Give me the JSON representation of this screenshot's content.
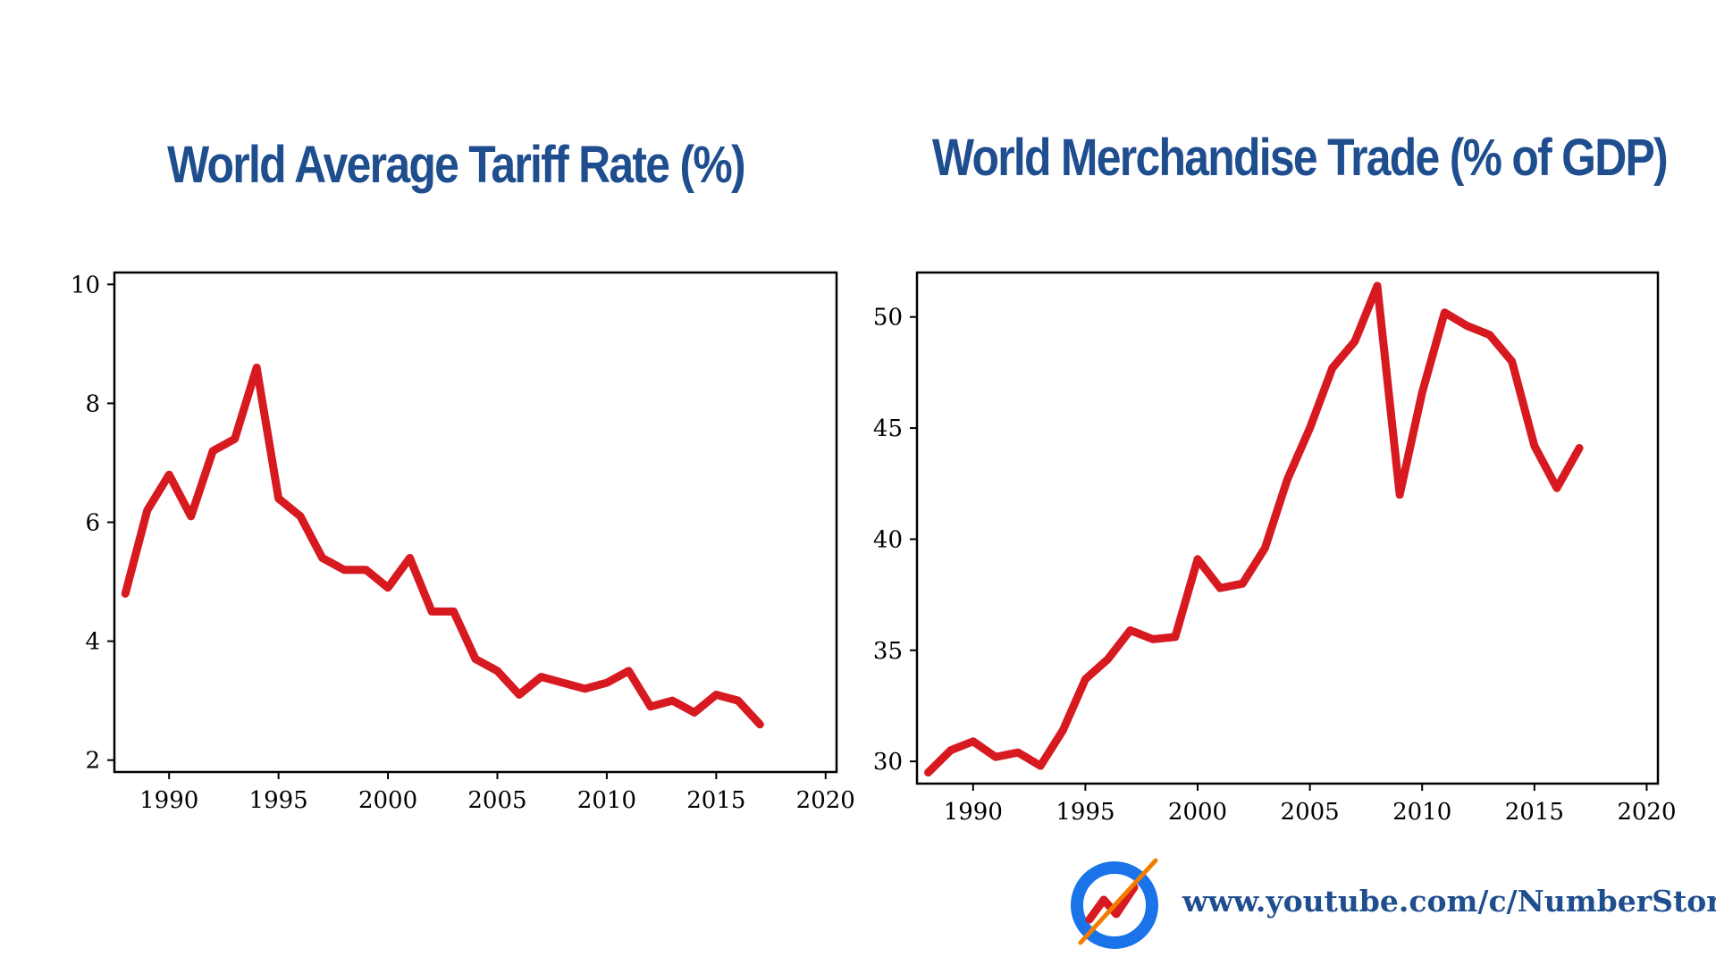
{
  "charts": {
    "left_title": "World Average Tariff Rate (%)",
    "right_title": "World Merchandise Trade (% of GDP)"
  },
  "footer": {
    "url_text": "www.youtube.com/c/NumberStory",
    "logo_icon": "number-story-logo-icon"
  },
  "colors": {
    "title": "#1f4e8f",
    "line": "#d71920",
    "logo_ring": "#1a73e8",
    "logo_accent": "#f07d00"
  },
  "chart_data": [
    {
      "type": "line",
      "title": "World Average Tariff Rate (%)",
      "xlabel": "",
      "ylabel": "",
      "xlim": [
        1987.5,
        2020.5
      ],
      "ylim": [
        1.8,
        10.2
      ],
      "xticks": [
        1990,
        1995,
        2000,
        2005,
        2010,
        2015,
        2020
      ],
      "yticks": [
        2,
        4,
        6,
        8,
        10
      ],
      "grid": false,
      "x": [
        1988,
        1989,
        1990,
        1991,
        1992,
        1993,
        1994,
        1995,
        1996,
        1997,
        1998,
        1999,
        2000,
        2001,
        2002,
        2003,
        2004,
        2005,
        2006,
        2007,
        2008,
        2009,
        2010,
        2011,
        2012,
        2013,
        2014,
        2015,
        2016,
        2017
      ],
      "series": [
        {
          "values": [
            4.8,
            6.2,
            6.8,
            6.1,
            7.2,
            7.4,
            8.6,
            6.4,
            6.1,
            5.4,
            5.2,
            5.2,
            4.9,
            5.4,
            4.5,
            4.5,
            3.7,
            3.5,
            3.1,
            3.4,
            3.3,
            3.2,
            3.3,
            3.5,
            2.9,
            3.0,
            2.8,
            3.1,
            3.0,
            2.6
          ]
        }
      ]
    },
    {
      "type": "line",
      "title": "World Merchandise Trade (% of GDP)",
      "xlabel": "",
      "ylabel": "",
      "xlim": [
        1987.5,
        2020.5
      ],
      "ylim": [
        29,
        52
      ],
      "xticks": [
        1990,
        1995,
        2000,
        2005,
        2010,
        2015,
        2020
      ],
      "yticks": [
        30,
        35,
        40,
        45,
        50
      ],
      "grid": false,
      "x": [
        1988,
        1989,
        1990,
        1991,
        1992,
        1993,
        1994,
        1995,
        1996,
        1997,
        1998,
        1999,
        2000,
        2001,
        2002,
        2003,
        2004,
        2005,
        2006,
        2007,
        2008,
        2009,
        2010,
        2011,
        2012,
        2013,
        2014,
        2015,
        2016,
        2017
      ],
      "series": [
        {
          "values": [
            29.5,
            30.5,
            30.9,
            30.2,
            30.4,
            29.8,
            31.4,
            33.7,
            34.6,
            35.9,
            35.5,
            35.6,
            39.1,
            37.8,
            38.0,
            39.6,
            42.7,
            45.0,
            47.7,
            48.9,
            51.4,
            42.0,
            46.6,
            50.2,
            49.6,
            49.2,
            48.0,
            44.2,
            42.3,
            44.1
          ]
        }
      ]
    }
  ]
}
